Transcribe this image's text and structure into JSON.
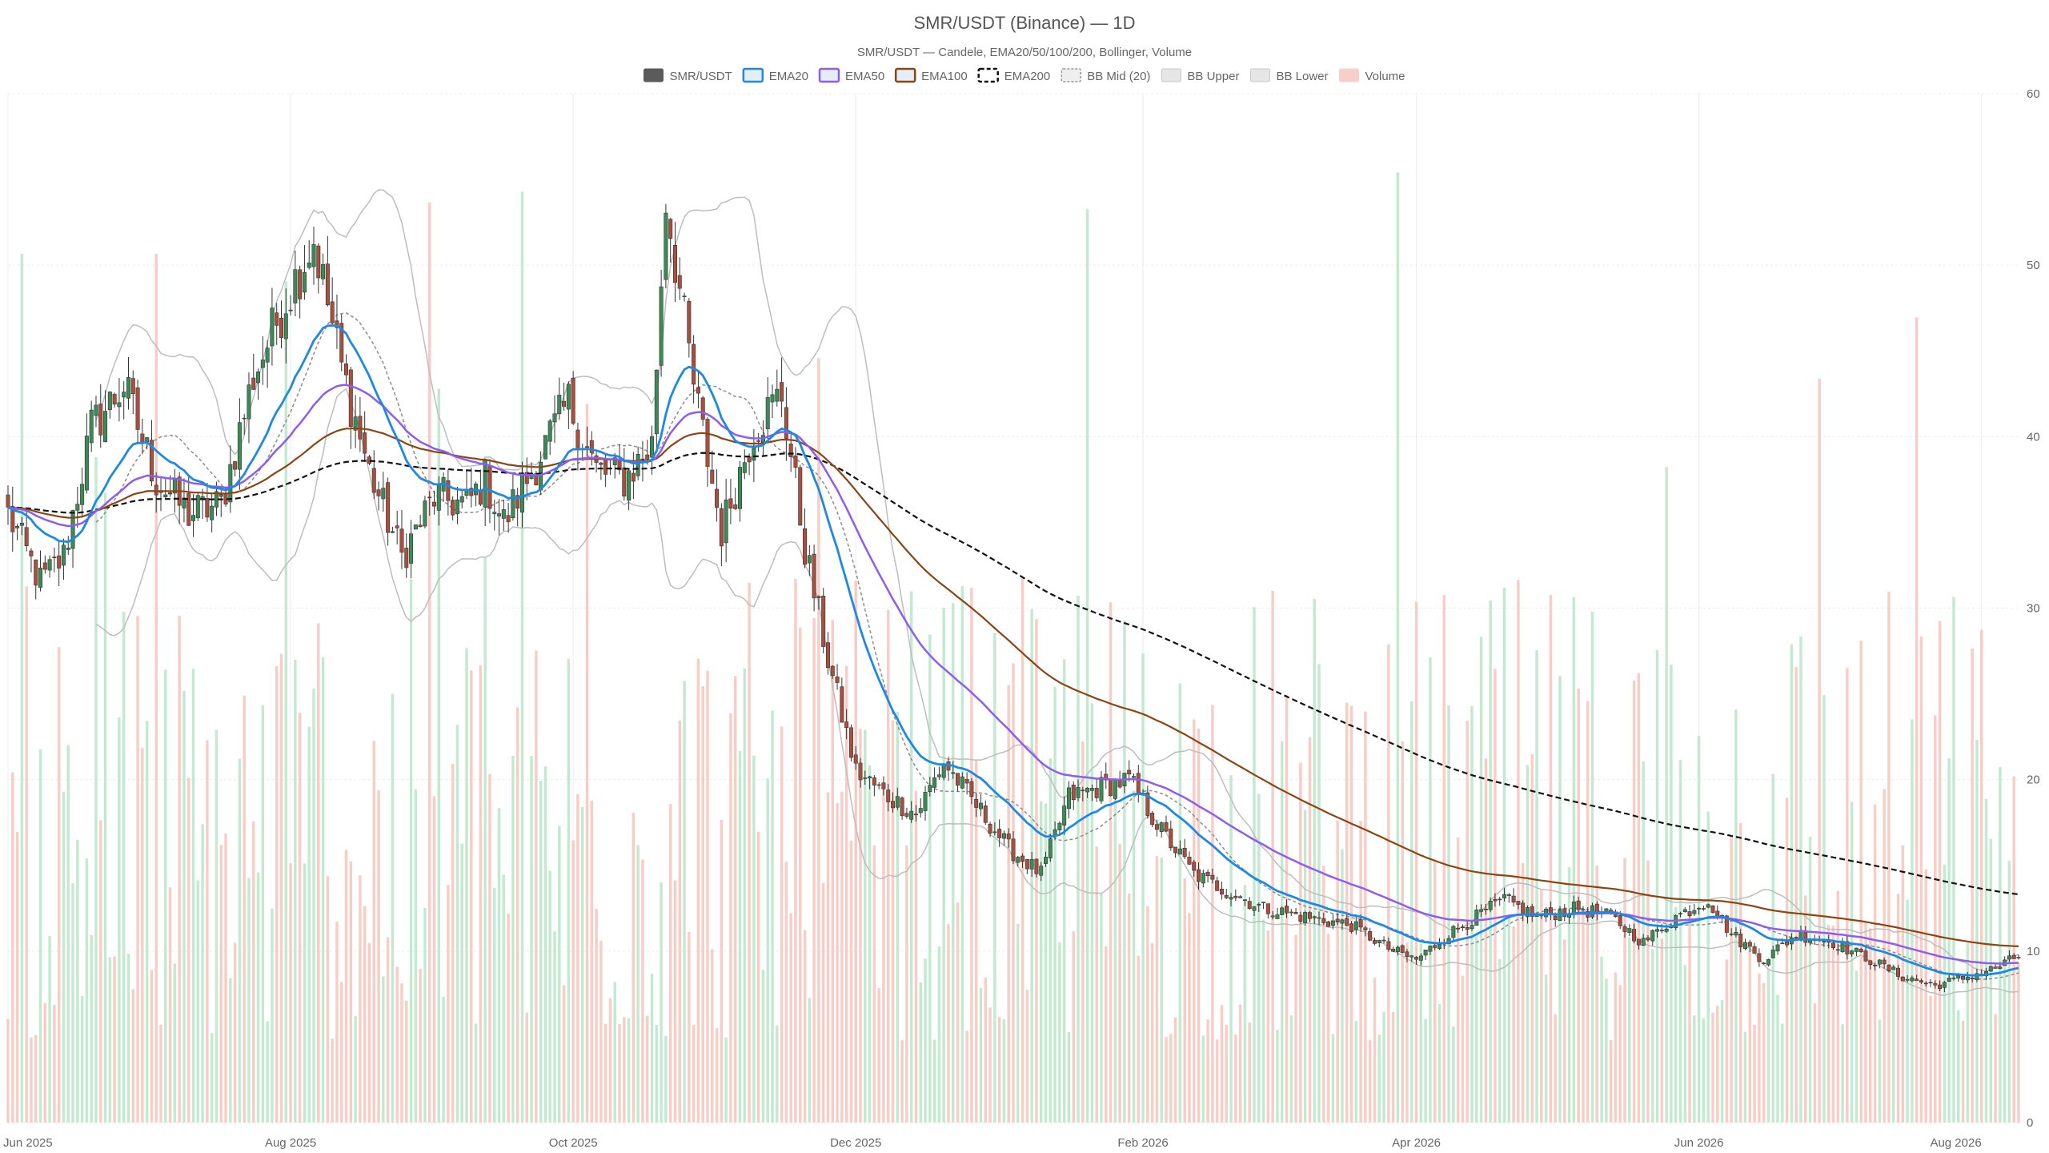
{
  "chart_data": {
    "type": "candlestick",
    "title": "SMR/USDT (Binance) — 1D",
    "subtitle": "SMR/USDT — Candele, EMA20/50/100/200, Bollinger, Volume",
    "legend_position": "top-center",
    "legend": [
      {
        "key": "price",
        "label": "SMR/USDT",
        "swatch": "solid",
        "color": "#555555"
      },
      {
        "key": "ema20",
        "label": "EMA20",
        "swatch": "box",
        "color": "#1e88e5"
      },
      {
        "key": "ema50",
        "label": "EMA50",
        "swatch": "box",
        "color": "#8e5cf0"
      },
      {
        "key": "ema100",
        "label": "EMA100",
        "swatch": "box",
        "color": "#8b4513"
      },
      {
        "key": "ema200",
        "label": "EMA200",
        "swatch": "dashed",
        "color": "#111111"
      },
      {
        "key": "bbmid",
        "label": "BB Mid (20)",
        "swatch": "dashed-light",
        "color": "#999999"
      },
      {
        "key": "bbup",
        "label": "BB Upper",
        "swatch": "light",
        "color": "#bbbbbb"
      },
      {
        "key": "bblow",
        "label": "BB Lower",
        "swatch": "light",
        "color": "#bbbbbb"
      },
      {
        "key": "volume",
        "label": "Volume",
        "swatch": "pink",
        "color": "#f4a9a0"
      }
    ],
    "colors": {
      "up": "#3a8b55",
      "down": "#a94f3e",
      "vol_up": "#b8e6c8",
      "vol_down": "#f6c4bc",
      "grid": "#ececec"
    },
    "x_axis": {
      "type": "date",
      "range": [
        "2025-06-01",
        "2026-08-09"
      ],
      "ticks": [
        {
          "label": "Jun 2025",
          "date": "2025-06-01"
        },
        {
          "label": "Aug 2025",
          "date": "2025-08-01"
        },
        {
          "label": "Oct 2025",
          "date": "2025-10-01"
        },
        {
          "label": "Dec 2025",
          "date": "2025-12-01"
        },
        {
          "label": "Feb 2026",
          "date": "2026-02-01"
        },
        {
          "label": "Apr 2026",
          "date": "2026-04-01"
        },
        {
          "label": "Jun 2026",
          "date": "2026-06-01"
        },
        {
          "label": "Aug 2026",
          "date": "2026-08-01"
        }
      ]
    },
    "y_axis": {
      "side": "right",
      "range": [
        0,
        60
      ],
      "ticks": [
        "0",
        "10",
        "20",
        "30",
        "40",
        "50",
        "60"
      ]
    },
    "grid": true,
    "price_anchors": [
      [
        "2025-06-01",
        35.5
      ],
      [
        "2025-06-08",
        31.5
      ],
      [
        "2025-06-13",
        33
      ],
      [
        "2025-06-19",
        40.5
      ],
      [
        "2025-06-26",
        43
      ],
      [
        "2025-07-03",
        37.5
      ],
      [
        "2025-07-10",
        35.5
      ],
      [
        "2025-07-17",
        36
      ],
      [
        "2025-07-24",
        43.5
      ],
      [
        "2025-07-31",
        48
      ],
      [
        "2025-08-06",
        51.5
      ],
      [
        "2025-08-12",
        44
      ],
      [
        "2025-08-18",
        38
      ],
      [
        "2025-08-25",
        33
      ],
      [
        "2025-09-01",
        36.5
      ],
      [
        "2025-09-08",
        36
      ],
      [
        "2025-09-12",
        37.5
      ],
      [
        "2025-09-16",
        35
      ],
      [
        "2025-09-24",
        39
      ],
      [
        "2025-09-30",
        42
      ],
      [
        "2025-10-06",
        38
      ],
      [
        "2025-10-12",
        37.5
      ],
      [
        "2025-10-18",
        39.5
      ],
      [
        "2025-10-21",
        54
      ],
      [
        "2025-10-27",
        43
      ],
      [
        "2025-11-02",
        34.5
      ],
      [
        "2025-11-09",
        40.5
      ],
      [
        "2025-11-15",
        42.5
      ],
      [
        "2025-11-20",
        33.5
      ],
      [
        "2025-11-25",
        27
      ],
      [
        "2025-12-01",
        20.5
      ],
      [
        "2025-12-08",
        19
      ],
      [
        "2025-12-14",
        18
      ],
      [
        "2025-12-20",
        21
      ],
      [
        "2025-12-27",
        18.5
      ],
      [
        "2026-01-03",
        16
      ],
      [
        "2026-01-10",
        14.5
      ],
      [
        "2026-01-16",
        19
      ],
      [
        "2026-01-22",
        19.5
      ],
      [
        "2026-01-29",
        20
      ],
      [
        "2026-02-05",
        17
      ],
      [
        "2026-02-12",
        14.5
      ],
      [
        "2026-02-19",
        13.5
      ],
      [
        "2026-02-27",
        12.5
      ],
      [
        "2026-03-08",
        12
      ],
      [
        "2026-03-18",
        11.5
      ],
      [
        "2026-03-27",
        10
      ],
      [
        "2026-04-01",
        9.5
      ],
      [
        "2026-04-08",
        11
      ],
      [
        "2026-04-14",
        12
      ],
      [
        "2026-04-20",
        13
      ],
      [
        "2026-04-27",
        12
      ],
      [
        "2026-05-06",
        12.5
      ],
      [
        "2026-05-13",
        12
      ],
      [
        "2026-05-20",
        10.5
      ],
      [
        "2026-05-27",
        12
      ],
      [
        "2026-06-03",
        13
      ],
      [
        "2026-06-08",
        11
      ],
      [
        "2026-06-15",
        9.5
      ],
      [
        "2026-06-22",
        11
      ],
      [
        "2026-06-30",
        10.5
      ],
      [
        "2026-07-08",
        9.5
      ],
      [
        "2026-07-15",
        8.5
      ],
      [
        "2026-07-22",
        8
      ],
      [
        "2026-07-29",
        8.5
      ],
      [
        "2026-08-04",
        9
      ],
      [
        "2026-08-09",
        9.7
      ]
    ],
    "volume_max": 60
  }
}
